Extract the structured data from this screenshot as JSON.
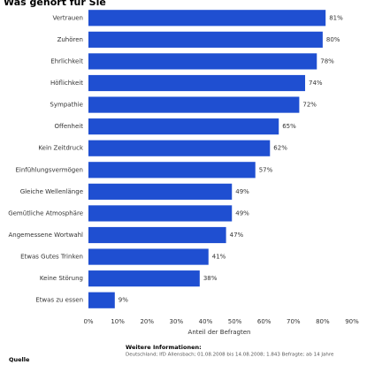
{
  "chart_data": {
    "type": "barh",
    "title": "Was gehört für Sie",
    "categories": [
      "Vertrauen",
      "Zuhören",
      "Ehrlichkeit",
      "Höflichkeit",
      "Sympathie",
      "Offenheit",
      "Kein Zeitdruck",
      "Einfühlungsvermögen",
      "Gleiche Wellenlänge",
      "Gemütliche Atmosphäre",
      "Angemessene Wortwahl",
      "Etwas Gutes Trinken",
      "Keine Störung",
      "Etwas zu essen"
    ],
    "values": [
      81,
      80,
      78,
      74,
      72,
      65,
      62,
      57,
      49,
      49,
      47,
      41,
      38,
      9
    ],
    "value_labels": [
      "81%",
      "80%",
      "78%",
      "74%",
      "72%",
      "65%",
      "62%",
      "57%",
      "49%",
      "49%",
      "47%",
      "41%",
      "38%",
      "9%"
    ],
    "color": "#1f4fd1",
    "xlim": [
      0,
      90
    ],
    "xticks": [
      {
        "value": 0,
        "label": "0%"
      },
      {
        "value": 10,
        "label": "10%"
      },
      {
        "value": 20,
        "label": "20%"
      },
      {
        "value": 30,
        "label": "30%"
      },
      {
        "value": 40,
        "label": "40%"
      },
      {
        "value": 50,
        "label": "50%"
      },
      {
        "value": 60,
        "label": "60%"
      },
      {
        "value": 70,
        "label": "70%"
      },
      {
        "value": 80,
        "label": "80%"
      },
      {
        "value": 90,
        "label": "90%"
      }
    ],
    "xlabel": "Anteil der Befragten",
    "grid": false,
    "info_title": "Weitere Informationen:",
    "info_text": "Deutschland; IfD Allensbach; 01.08.2008 bis 14.08.2008; 1.843 Befragte; ab 14 Jahre",
    "source_title": "Quelle"
  }
}
